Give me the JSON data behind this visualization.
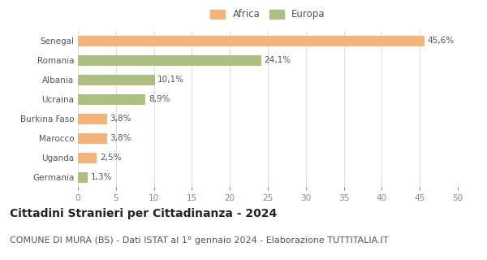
{
  "categories": [
    "Senegal",
    "Romania",
    "Albania",
    "Ucraina",
    "Burkina Faso",
    "Marocco",
    "Uganda",
    "Germania"
  ],
  "values": [
    45.6,
    24.1,
    10.1,
    8.9,
    3.8,
    3.8,
    2.5,
    1.3
  ],
  "labels": [
    "45,6%",
    "24,1%",
    "10,1%",
    "8,9%",
    "3,8%",
    "3,8%",
    "2,5%",
    "1,3%"
  ],
  "colors": [
    "#F2B47A",
    "#AEBF82",
    "#AEBF82",
    "#AEBF82",
    "#F2B47A",
    "#F2B47A",
    "#F2B47A",
    "#AEBF82"
  ],
  "legend_africa_color": "#F2B47A",
  "legend_europa_color": "#AEBF82",
  "xlim": [
    0,
    50
  ],
  "xticks": [
    0,
    5,
    10,
    15,
    20,
    25,
    30,
    35,
    40,
    45,
    50
  ],
  "title": "Cittadini Stranieri per Cittadinanza - 2024",
  "subtitle": "COMUNE DI MURA (BS) - Dati ISTAT al 1° gennaio 2024 - Elaborazione TUTTITALIA.IT",
  "title_fontsize": 10,
  "subtitle_fontsize": 8,
  "label_fontsize": 7.5,
  "tick_fontsize": 7.5,
  "legend_fontsize": 8.5,
  "bar_height": 0.55,
  "background_color": "#ffffff",
  "grid_color": "#dddddd"
}
